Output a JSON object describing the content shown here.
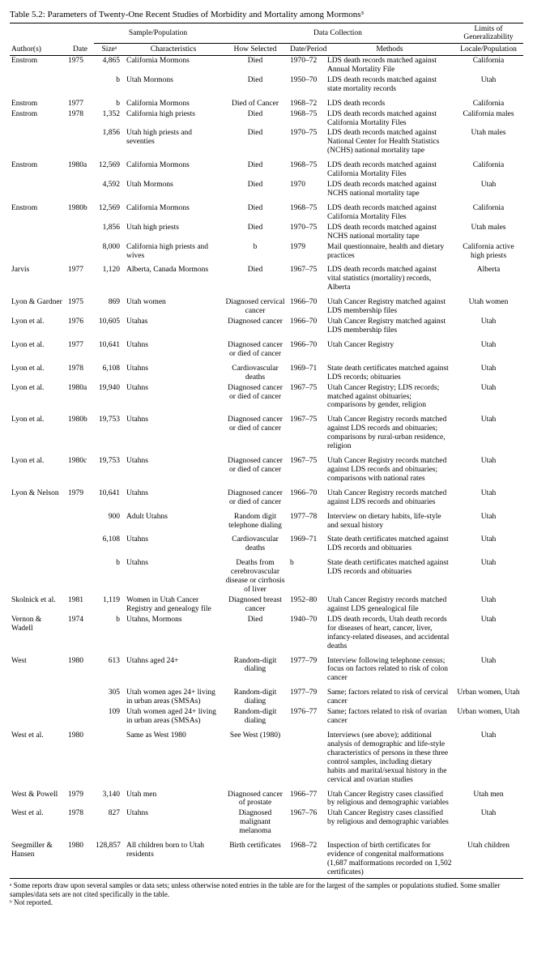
{
  "title": "Table 5.2: Parameters of Twenty-One Recent Studies of Morbidity and Mortality among Mormons³",
  "group_headers": {
    "sample": "Sample/Population",
    "data": "Data Collection",
    "limits": "Limits of Generalizability"
  },
  "col_headers": {
    "author": "Author(s)",
    "date": "Date",
    "size": "Sizeᵃ",
    "chars": "Characteristics",
    "how": "How Selected",
    "period": "Date/Period",
    "methods": "Methods",
    "locale": "Locale/Population"
  },
  "rows": [
    {
      "a": "Enstrom",
      "d": "1975",
      "s": "4,865",
      "c": "California Mormons",
      "h": "Died",
      "p": "1970–72",
      "m": "LDS death records matched against Annual Mortality File",
      "l": "California"
    },
    {
      "a": "",
      "d": "",
      "s": "b",
      "c": "Utah Mormons",
      "h": "Died",
      "p": "1950–70",
      "m": "LDS death records matched against state mortality records",
      "l": "Utah"
    },
    {
      "a": "Enstrom",
      "d": "1977",
      "s": "b",
      "c": "California Mormons",
      "h": "Died of Cancer",
      "p": "1968–72",
      "m": "LDS death records",
      "l": "California",
      "gap": true
    },
    {
      "a": "Enstrom",
      "d": "1978",
      "s": "1,352",
      "c": "California high priests",
      "h": "Died",
      "p": "1968–75",
      "m": "LDS death records matched against California Mortality Files",
      "l": "California males"
    },
    {
      "a": "",
      "d": "",
      "s": "1,856",
      "c": "Utah high priests and seventies",
      "h": "Died",
      "p": "1970–75",
      "m": "LDS death records matched against National Center for Health Statistics (NCHS) national mortality tape",
      "l": "Utah males"
    },
    {
      "a": "Enstrom",
      "d": "1980a",
      "s": "12,569",
      "c": "California Mormons",
      "h": "Died",
      "p": "1968–75",
      "m": "LDS death records matched against California Mortality Files",
      "l": "California",
      "gap": true
    },
    {
      "a": "",
      "d": "",
      "s": "4,592",
      "c": "Utah Mormons",
      "h": "Died",
      "p": "1970",
      "m": "LDS death records matched against NCHS national mortality tape",
      "l": "Utah"
    },
    {
      "a": "Enstrom",
      "d": "1980b",
      "s": "12,569",
      "c": "California Mormons",
      "h": "Died",
      "p": "1968–75",
      "m": "LDS death records matched against California Mortality Files",
      "l": "California",
      "gap": true
    },
    {
      "a": "",
      "d": "",
      "s": "1,856",
      "c": "Utah high priests",
      "h": "Died",
      "p": "1970–75",
      "m": "LDS death records matched against NCHS national mortality tape",
      "l": "Utah males"
    },
    {
      "a": "",
      "d": "",
      "s": "8,000",
      "c": "California high priests and wives",
      "h": "b",
      "p": "1979",
      "m": "Mail questionnaire, health and dietary practices",
      "l": "California active high priests"
    },
    {
      "a": "Jarvis",
      "d": "1977",
      "s": "1,120",
      "c": "Alberta, Canada Mormons",
      "h": "Died",
      "p": "1967–75",
      "m": "LDS death records matched against vital statistics (mortality) records, Alberta",
      "l": "Alberta",
      "gap": true
    },
    {
      "a": "Lyon & Gardner",
      "d": "1975",
      "s": "869",
      "c": "Utah women",
      "h": "Diagnosed cervical cancer",
      "p": "1966–70",
      "m": "Utah Cancer Registry matched against LDS membership files",
      "l": "Utah women",
      "gap": true
    },
    {
      "a": "Lyon et al.",
      "d": "1976",
      "s": "10,605",
      "c": "Utahas",
      "h": "Diagnosed cancer",
      "p": "1966–70",
      "m": "Utah Cancer Registry matched against LDS membership files",
      "l": "Utah"
    },
    {
      "a": "Lyon et al.",
      "d": "1977",
      "s": "10,641",
      "c": "Utahns",
      "h": "Diagnosed cancer or died of cancer",
      "p": "1966–70",
      "m": "Utah Cancer Registry",
      "l": "Utah",
      "gap": true
    },
    {
      "a": "Lyon et al.",
      "d": "1978",
      "s": "6,108",
      "c": "Utahns",
      "h": "Cardiovascular deaths",
      "p": "1969–71",
      "m": "State death certificates matched against LDS records; obituaries",
      "l": "Utah",
      "gap": true
    },
    {
      "a": "Lyon et al.",
      "d": "1980a",
      "s": "19,940",
      "c": "Utahns",
      "h": "Diagnosed cancer or died of cancer",
      "p": "1967–75",
      "m": "Utah Cancer Registry; LDS records; matched against obituaries; comparisons by gender, religion",
      "l": "Utah"
    },
    {
      "a": "Lyon et al.",
      "d": "1980b",
      "s": "19,753",
      "c": "Utahns",
      "h": "Diagnosed cancer or died of cancer",
      "p": "1967–75",
      "m": "Utah Cancer Registry records matched against LDS records and obituaries; comparisons by rural-urban residence, religion",
      "l": "Utah",
      "gap": true
    },
    {
      "a": "Lyon et al.",
      "d": "1980c",
      "s": "19,753",
      "c": "Utahns",
      "h": "Diagnosed cancer or died of cancer",
      "p": "1967–75",
      "m": "Utah Cancer Registry records matched against LDS records and obituaries; comparisons with national rates",
      "l": "Utah",
      "gap": true
    },
    {
      "a": "Lyon & Nelson",
      "d": "1979",
      "s": "10,641",
      "c": "Utahns",
      "h": "Diagnosed cancer or died of cancer",
      "p": "1966–70",
      "m": "Utah Cancer Registry records matched against LDS records and obituaries",
      "l": "Utah",
      "gap": true
    },
    {
      "a": "",
      "d": "",
      "s": "900",
      "c": "Adult Utahns",
      "h": "Random digit telephone dialing",
      "p": "1977–78",
      "m": "Interview on dietary habits, life-style and sexual history",
      "l": "Utah",
      "gap": true
    },
    {
      "a": "",
      "d": "",
      "s": "6,108",
      "c": "Utahns",
      "h": "Cardiovascular deaths",
      "p": "1969–71",
      "m": "State death certificates matched against LDS records and obituaries",
      "l": "Utah",
      "gap": true
    },
    {
      "a": "",
      "d": "",
      "s": "b",
      "c": "Utahns",
      "h": "Deaths from cerebrovascular disease or cirrhosis of liver",
      "p": "b",
      "m": "State death certificates matched against LDS records and obituaries",
      "l": "Utah",
      "gap": true
    },
    {
      "a": "Skolnick et al.",
      "d": "1981",
      "s": "1,119",
      "c": "Women in Utah Cancer Registry and genealogy file",
      "h": "Diagnosed breast cancer",
      "p": "1952–80",
      "m": "Utah Cancer Registry records matched against LDS genealogical file",
      "l": "Utah"
    },
    {
      "a": "Vernon & Wadell",
      "d": "1974",
      "s": "b",
      "c": "Utahns, Mormons",
      "h": "Died",
      "p": "1940–70",
      "m": "LDS death records, Utah death records for diseases of heart, cancer, liver, infancy-related diseases, and accidental deaths",
      "l": "Utah"
    },
    {
      "a": "West",
      "d": "1980",
      "s": "613",
      "c": "Utahns aged 24+",
      "h": "Random-digit dialing",
      "p": "1977–79",
      "m": "Interview following telephone census; focus on factors related to risk of colon cancer",
      "l": "Utah",
      "gap": true
    },
    {
      "a": "",
      "d": "",
      "s": "305",
      "c": "Utah women ages 24+ living in urban areas (SMSAs)",
      "h": "Random-digit dialing",
      "p": "1977–79",
      "m": "Same; factors related to risk of cervical cancer",
      "l": "Urban women, Utah",
      "gap": true
    },
    {
      "a": "",
      "d": "",
      "s": "109",
      "c": "Utah women aged 24+ living in urban areas (SMSAs)",
      "h": "Random-digit dialing",
      "p": "1976–77",
      "m": "Same; factors related to risk of ovarian cancer",
      "l": "Urban women, Utah"
    },
    {
      "a": "West et al.",
      "d": "1980",
      "s": "",
      "c": "Same as West 1980",
      "h": "See West (1980)",
      "p": "",
      "m": "Interviews (see above); additional analysis of demographic and life-style characteristics of persons in these three control samples, including dietary habits and marital/sexual history in the cervical and ovarian studies",
      "l": "Utah",
      "gap": true
    },
    {
      "a": "West & Powell",
      "d": "1979",
      "s": "3,140",
      "c": "Utah men",
      "h": "Diagnosed cancer of prostate",
      "p": "1966–77",
      "m": "Utah Cancer Registry cases classified by religious and demographic variables",
      "l": "Utah men",
      "gap": true
    },
    {
      "a": "West et al.",
      "d": "1978",
      "s": "827",
      "c": "Utahns",
      "h": "Diagnosed malignant melanoma",
      "p": "1967–76",
      "m": "Utah Cancer Registry cases classified by religious and demographic variables",
      "l": "Utah"
    },
    {
      "a": "Seegmiller & Hansen",
      "d": "1980",
      "s": "128,857",
      "c": "All children born to Utah residents",
      "h": "Birth certificates",
      "p": "1968–72",
      "m": "Inspection of birth certificates for evidence of congenital malformations (1,687 malformations recorded on 1,502 certificates)",
      "l": "Utah children",
      "gap": true
    }
  ],
  "footnotes": [
    "ᵃ Some reports draw upon several samples or data sets; unless otherwise noted entries in the table are for the largest of the samples or populations studied. Some smaller samples/data sets are not cited specifically in the table.",
    "ᵇ Not reported."
  ]
}
